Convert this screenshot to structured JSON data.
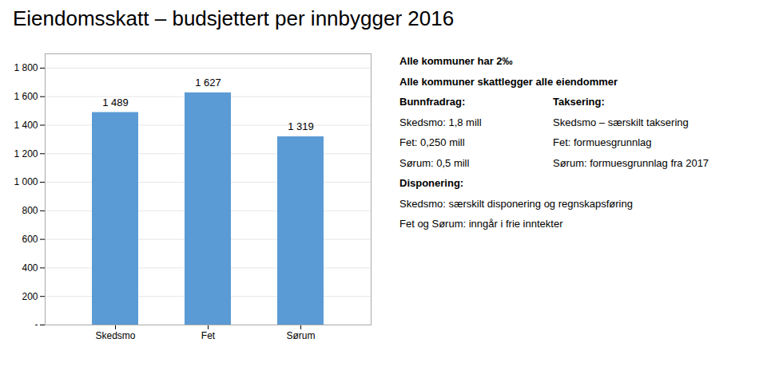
{
  "chart_data": {
    "type": "bar",
    "title": "Eiendomsskatt – budsjettert per innbygger 2016",
    "categories": [
      "Skedsmo",
      "Fet",
      "Sørum"
    ],
    "values": [
      1489,
      1627,
      1319
    ],
    "value_labels": [
      "1 489",
      "1 627",
      "1 319"
    ],
    "data_labels": true,
    "color": "#5B9BD5",
    "ylim": [
      0,
      1900
    ],
    "yticks": [
      {
        "value": 0,
        "label": "-"
      },
      200,
      400,
      600,
      800,
      {
        "value": 1000,
        "label": "1 000"
      },
      {
        "value": 1200,
        "label": "1 200"
      },
      {
        "value": 1400,
        "label": "1 400"
      },
      {
        "value": 1600,
        "label": "1 600"
      },
      {
        "value": 1800,
        "label": "1 800"
      }
    ],
    "grid": true,
    "annotations": [
      [
        "Alle kommuner har 2‰"
      ],
      [
        "Alle kommuner skattlegger alle eiendommer"
      ],
      [
        "Bunnfradrag:",
        "Taksering:"
      ],
      [
        "Skedsmo: 1,8 mill",
        "Skedsmo – særskilt taksering"
      ],
      [
        "Fet: 0,250 mill",
        "Fet: formuesgrunnlag"
      ],
      [
        "Sørum: 0,5 mill",
        "Sørum: formuesgrunnlag fra 2017"
      ],
      [
        "Disponering:"
      ],
      [
        "Skedsmo: særskilt disponering og regnskapsføring"
      ],
      [
        "Fet og Sørum: inngår i frie inntekter"
      ]
    ]
  }
}
